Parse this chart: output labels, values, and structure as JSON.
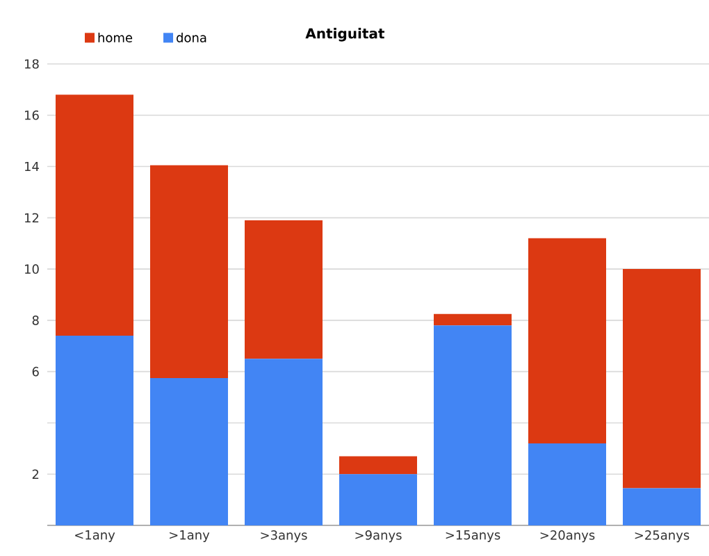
{
  "chart_data": {
    "type": "bar",
    "title": "Antiguitat",
    "stacked": true,
    "categories": [
      "<1any",
      ">1any",
      ">3anys",
      ">9anys",
      ">15anys",
      ">20anys",
      ">25anys"
    ],
    "series": [
      {
        "name": "dona",
        "color": "#4285f4",
        "values": [
          7.4,
          5.75,
          6.5,
          2.0,
          7.8,
          3.2,
          1.45
        ]
      },
      {
        "name": "home",
        "color": "#dc3912",
        "values": [
          9.4,
          8.3,
          5.4,
          0.7,
          0.45,
          8.0,
          8.55
        ]
      }
    ],
    "ylim": [
      0,
      18
    ],
    "yticks": [
      {
        "value": 0,
        "label": null
      },
      2,
      {
        "value": 4,
        "label": null
      },
      6,
      8,
      10,
      12,
      14,
      16,
      18
    ],
    "grid": "y",
    "legend": "top left"
  }
}
